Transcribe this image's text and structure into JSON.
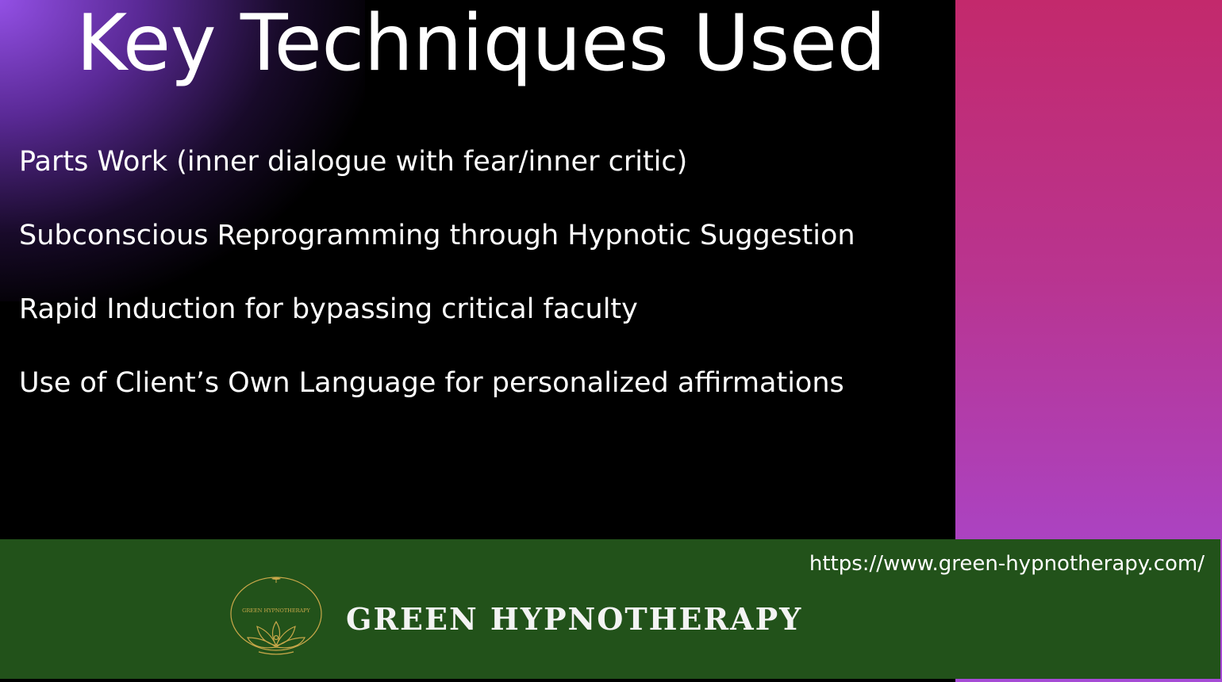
{
  "slide": {
    "title": "Key Techniques Used",
    "bullets": [
      "Parts Work (inner dialogue with fear/inner critic)",
      "Subconscious Reprogramming through Hypnotic Suggestion",
      "Rapid Induction for bypassing critical faculty",
      "Use of Client’s Own Language for personalized affirmations"
    ]
  },
  "footer": {
    "url": "https://www.green-hypnotherapy.com/",
    "brand_name": "GREEN HYPNOTHERAPY",
    "logo_text": "GREEN HYPNOTHERAPY"
  },
  "colors": {
    "background": "#000000",
    "footer_green": "#22521a",
    "panel_top": "#c3296c",
    "panel_bottom": "#a64bd6",
    "glow_purple": "#9e56f5",
    "logo_gold": "#c9a84a"
  },
  "icons": [
    "lotus-logo-icon"
  ]
}
